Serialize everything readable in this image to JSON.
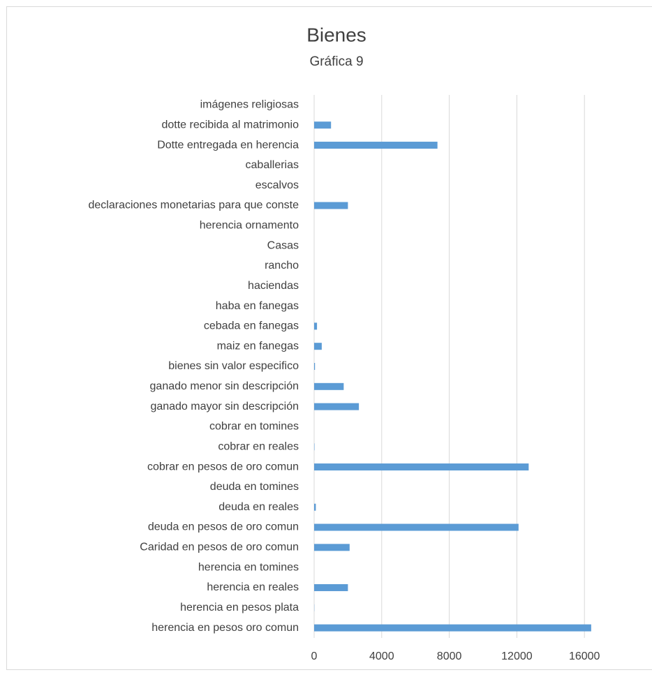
{
  "chart_data": {
    "type": "barh",
    "title": "Bienes",
    "subtitle": "Gráfica 9",
    "categories": [
      "imágenes religiosas",
      "dotte recibida al matrimonio",
      "Dotte entregada en herencia",
      "caballerias",
      "escalvos",
      "declaraciones monetarias para que conste",
      "herencia ornamento",
      "Casas",
      "rancho",
      "haciendas",
      "haba en fanegas",
      "cebada en fanegas",
      "maiz en fanegas",
      "bienes sin valor especifico",
      "ganado menor sin descripción",
      "ganado mayor sin descripción",
      "cobrar en tomines",
      "cobrar en reales",
      "cobrar en pesos de oro comun",
      "deuda en tomines",
      "deuda en reales",
      "deuda  en pesos de oro comun",
      "Caridad en pesos de oro comun",
      "herencia en tomines",
      "herencia en reales",
      "herencia en pesos plata",
      "herencia en pesos oro comun"
    ],
    "values": [
      0,
      1000,
      7300,
      0,
      0,
      2000,
      0,
      0,
      0,
      0,
      0,
      170,
      450,
      50,
      1750,
      2650,
      0,
      20,
      12700,
      0,
      100,
      12100,
      2100,
      0,
      2000,
      10,
      16400
    ],
    "color": "#5b9bd5",
    "xlim": [
      0,
      20000
    ],
    "xticks": [
      0,
      4000,
      8000,
      12000,
      16000
    ],
    "grid": true
  }
}
